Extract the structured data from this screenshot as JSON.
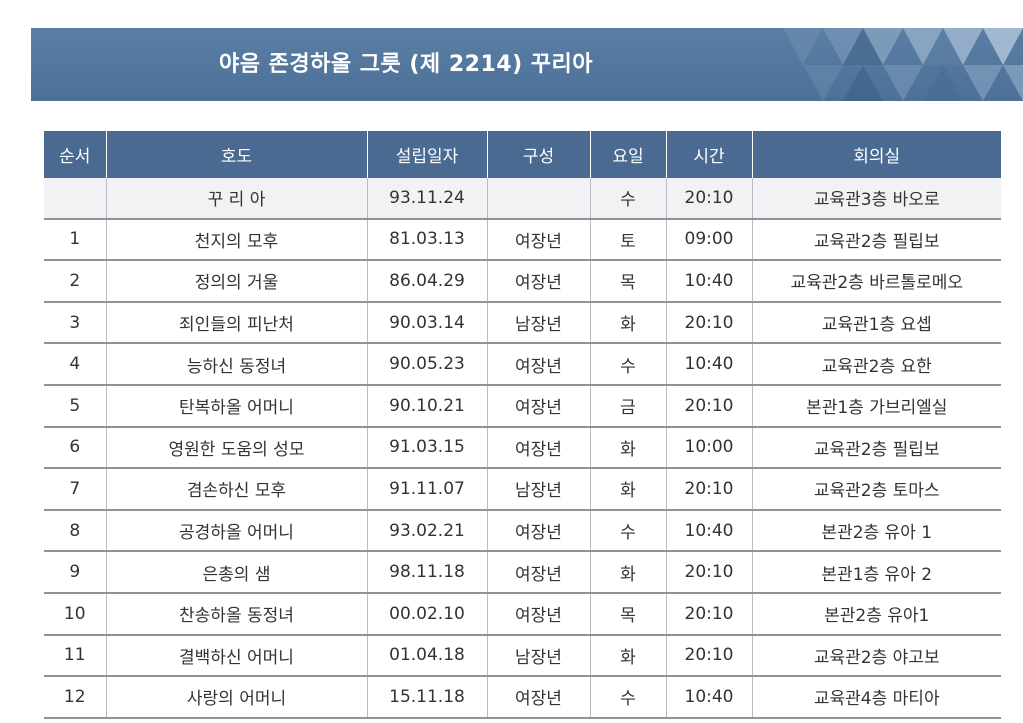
{
  "banner": {
    "title": "야음 존경하올 그릇 (제 2214) 꾸리아"
  },
  "table": {
    "headers": [
      "순서",
      "호도",
      "설립일자",
      "구성",
      "요일",
      "시간",
      "회의실"
    ],
    "rows": [
      [
        "",
        "꾸 리 아",
        "93.11.24",
        "",
        "수",
        "20:10",
        "교육관3층 바오로"
      ],
      [
        "1",
        "천지의 모후",
        "81.03.13",
        "여장년",
        "토",
        "09:00",
        "교육관2층 필립보"
      ],
      [
        "2",
        "정의의 거울",
        "86.04.29",
        "여장년",
        "목",
        "10:40",
        "교육관2층 바르톨로메오"
      ],
      [
        "3",
        "죄인들의 피난처",
        "90.03.14",
        "남장년",
        "화",
        "20:10",
        "교육관1층 요셉"
      ],
      [
        "4",
        "능하신 동정녀",
        "90.05.23",
        "여장년",
        "수",
        "10:40",
        "교육관2층 요한"
      ],
      [
        "5",
        "탄복하올 어머니",
        "90.10.21",
        "여장년",
        "금",
        "20:10",
        "본관1층 가브리엘실"
      ],
      [
        "6",
        "영원한 도움의 성모",
        "91.03.15",
        "여장년",
        "화",
        "10:00",
        "교육관2층 필립보"
      ],
      [
        "7",
        "겸손하신 모후",
        "91.11.07",
        "남장년",
        "화",
        "20:10",
        "교육관2층 토마스"
      ],
      [
        "8",
        "공경하올 어머니",
        "93.02.21",
        "여장년",
        "수",
        "10:40",
        "본관2층 유아 1"
      ],
      [
        "9",
        "은총의 샘",
        "98.11.18",
        "여장년",
        "화",
        "20:10",
        "본관1층 유아 2"
      ],
      [
        "10",
        "찬송하올 동정녀",
        "00.02.10",
        "여장년",
        "목",
        "20:10",
        "본관2층 유아1"
      ],
      [
        "11",
        "결백하신 어머니",
        "01.04.18",
        "남장년",
        "화",
        "20:10",
        "교육관2층 야고보"
      ],
      [
        "12",
        "사랑의 어머니",
        "15.11.18",
        "여장년",
        "수",
        "10:40",
        "교육관4층 마티아"
      ]
    ]
  }
}
